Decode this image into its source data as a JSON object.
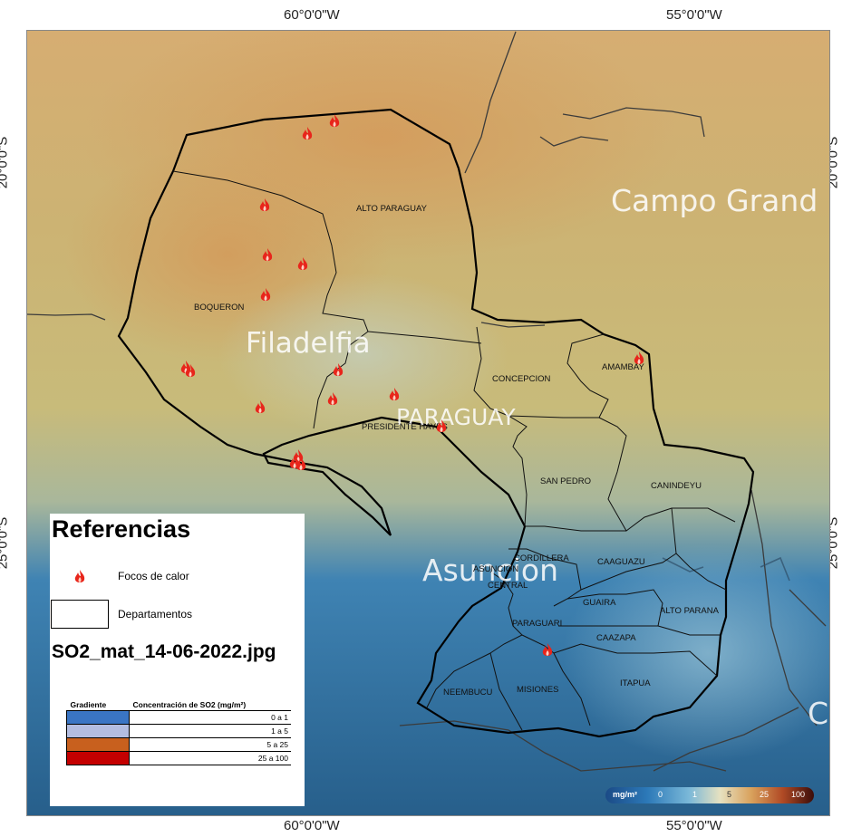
{
  "coords": {
    "top_left": "60°0'0\"W",
    "top_right": "55°0'0\"W",
    "bottom_left": "60°0'0\"W",
    "bottom_right": "55°0'0\"W",
    "left_top": "20°0'0\"S",
    "left_bottom": "25°0'0\"S",
    "right_top": "20°0'0\"S",
    "right_bottom": "25°0'0\"S"
  },
  "cities": {
    "filadelfia": "Filadelfia",
    "paraguay": "PARAGUAY",
    "asuncion": "Asuncion",
    "campo_grande": "Campo Grand",
    "edge_c": "C"
  },
  "departments": {
    "alto_paraguay": "ALTO PARAGUAY",
    "boqueron": "BOQUERON",
    "presidente_hayes": "PRESIDENTE HAYES",
    "concepcion": "CONCEPCION",
    "amambay": "AMAMBAY",
    "san_pedro": "SAN PEDRO",
    "canindeyu": "CANINDEYU",
    "cordillera": "CORDILLERA",
    "asuncion": "ASUNCION",
    "central": "CENTRAL",
    "caaguazu": "CAAGUAZU",
    "guaira": "GUAIRA",
    "alto_parana": "ALTO PARANA",
    "paraguari": "PARAGUARI",
    "caazapa": "CAAZAPA",
    "neembucu": "NEEMBUCU",
    "misiones": "MISIONES",
    "itapua": "ITAPUA"
  },
  "legend": {
    "title": "Referencias",
    "fire_label": "Focos de calor",
    "dept_label": "Departamentos",
    "file_name": "SO2_mat_14-06-2022.jpg",
    "table_header_gradient": "Gradiente",
    "table_header_conc": "Concentración de SO2 (mg/m²)",
    "rows": [
      {
        "range": "0 a 1",
        "color": "#3a75c4"
      },
      {
        "range": "1 a 5",
        "color": "#b3bde0"
      },
      {
        "range": "5 a 25",
        "color": "#c8601e"
      },
      {
        "range": "25 a 100",
        "color": "#c40000"
      }
    ]
  },
  "scalebar": {
    "unit": "mg/m²",
    "ticks": [
      "0",
      "1",
      "5",
      "25",
      "100"
    ]
  },
  "fire_count": 18
}
